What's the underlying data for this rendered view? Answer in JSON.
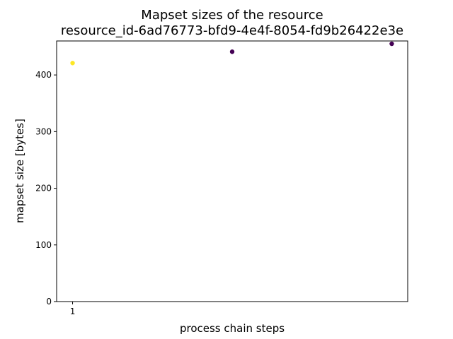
{
  "chart_data": {
    "type": "scatter",
    "title": "Mapset sizes of the resource",
    "subtitle": "resource_id-6ad76773-bfd9-4e4f-8054-fd9b26422e3e",
    "xlabel": "process chain steps",
    "ylabel": "mapset size [bytes]",
    "xlim": [
      0.9,
      3.1
    ],
    "ylim": [
      0,
      460
    ],
    "xticks": [
      {
        "value": 1,
        "label": "1"
      }
    ],
    "yticks": [
      {
        "value": 0,
        "label": "0"
      },
      {
        "value": 100,
        "label": "100"
      },
      {
        "value": 200,
        "label": "200"
      },
      {
        "value": 300,
        "label": "300"
      },
      {
        "value": 400,
        "label": "400"
      }
    ],
    "grid": false,
    "points": [
      {
        "x": 1,
        "y": 421,
        "color": "#fde725"
      },
      {
        "x": 2,
        "y": 441,
        "color": "#440154"
      },
      {
        "x": 3,
        "y": 455,
        "color": "#440154"
      }
    ]
  }
}
